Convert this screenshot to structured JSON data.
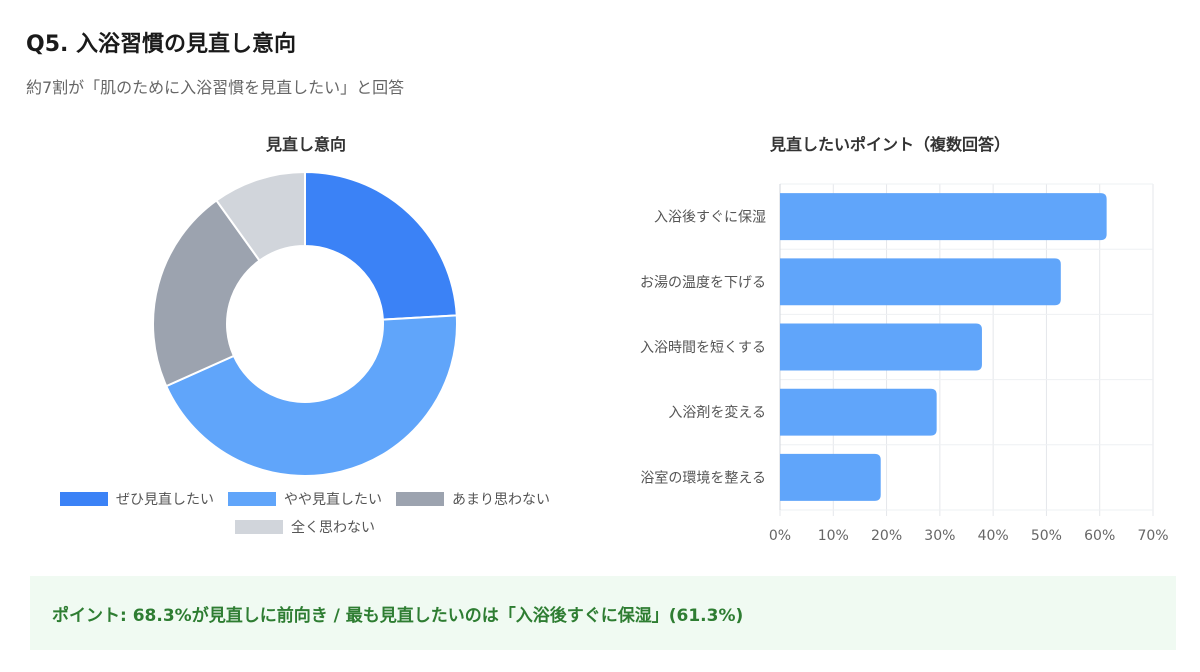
{
  "header": {
    "title": "Q5. 入浴習慣の見直し意向",
    "subtitle": "約7割が「肌のために入浴習慣を見直したい」と回答"
  },
  "chart_data": [
    {
      "type": "pie",
      "title": "見直し意向",
      "categories": [
        "ぜひ見直したい",
        "やや見直したい",
        "あまり思わない",
        "全く思わない"
      ],
      "values": [
        24.1,
        44.2,
        21.8,
        9.9
      ],
      "colors": [
        "#3b82f6",
        "#60a5fa",
        "#9ca3af",
        "#d1d5db"
      ],
      "legend": "bottom"
    },
    {
      "type": "bar",
      "orientation": "horizontal",
      "title": "見直したいポイント（複数回答）",
      "categories": [
        "入浴後すぐに保湿",
        "お湯の温度を下げる",
        "入浴時間を短くする",
        "入浴剤を変える",
        "浴室の環境を整える"
      ],
      "values": [
        61.3,
        52.7,
        37.9,
        29.4,
        18.9
      ],
      "xlim": [
        0,
        70
      ],
      "xticks": [
        "0%",
        "10%",
        "20%",
        "30%",
        "40%",
        "50%",
        "60%",
        "70%"
      ],
      "color": "#60a5fa",
      "grid": true
    }
  ],
  "callout": {
    "text": "ポイント: 68.3%が見直しに前向き / 最も見直したいのは「入浴後すぐに保湿」(61.3%)"
  }
}
